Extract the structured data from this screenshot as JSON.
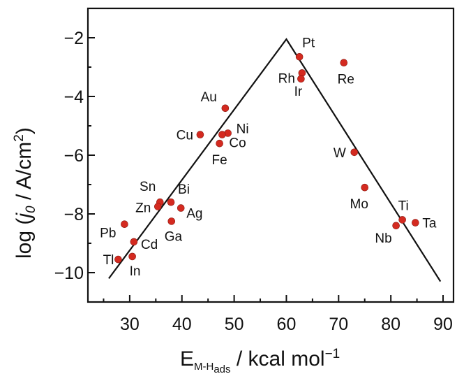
{
  "chart_data": {
    "type": "scatter",
    "title": "",
    "xlabel": {
      "main": "E",
      "sub": "M-H",
      "subsub": "ads",
      "unit": " / kcal mol",
      "sup": "−1"
    },
    "ylabel": {
      "pre": "log (",
      "var": "j",
      "varsub": "0",
      "unit": " / A/cm",
      "sup": "2",
      "post": ")"
    },
    "xlim": [
      22,
      92
    ],
    "ylim": [
      -11,
      -1
    ],
    "xticks": [
      30,
      40,
      50,
      60,
      70,
      80,
      90
    ],
    "xtick_labels": [
      "30",
      "40",
      "50",
      "60",
      "70",
      "80",
      "90"
    ],
    "yticks": [
      -2,
      -4,
      -6,
      -8,
      -10
    ],
    "ytick_labels": [
      "−2",
      "−4",
      "−6",
      "−8",
      "−10"
    ],
    "grid": false,
    "marker_color": "#d42a20",
    "line_color": "#111111",
    "volcano_line": [
      {
        "x": 26,
        "y": -10.2
      },
      {
        "x": 60,
        "y": -2.05
      },
      {
        "x": 89.5,
        "y": -10.3
      }
    ],
    "points": [
      {
        "label": "Pt",
        "x": 62.5,
        "y": -2.65
      },
      {
        "label": "Rh",
        "x": 63.0,
        "y": -3.2
      },
      {
        "label": "Ir",
        "x": 62.8,
        "y": -3.4
      },
      {
        "label": "Re",
        "x": 71.0,
        "y": -2.85
      },
      {
        "label": "Au",
        "x": 48.3,
        "y": -4.4
      },
      {
        "label": "Cu",
        "x": 43.5,
        "y": -5.3
      },
      {
        "label": "Ni",
        "x": 48.8,
        "y": -5.25
      },
      {
        "label": "Co",
        "x": 47.7,
        "y": -5.3
      },
      {
        "label": "Fe",
        "x": 47.2,
        "y": -5.6
      },
      {
        "label": "W",
        "x": 73.0,
        "y": -5.9
      },
      {
        "label": "Mo",
        "x": 75.0,
        "y": -7.1
      },
      {
        "label": "Sn",
        "x": 35.8,
        "y": -7.6
      },
      {
        "label": "Bi",
        "x": 37.9,
        "y": -7.6
      },
      {
        "label": "Zn",
        "x": 35.4,
        "y": -7.75
      },
      {
        "label": "Ag",
        "x": 39.8,
        "y": -7.8
      },
      {
        "label": "Ga",
        "x": 38.0,
        "y": -8.25
      },
      {
        "label": "Pb",
        "x": 29.0,
        "y": -8.35
      },
      {
        "label": "Cd",
        "x": 30.8,
        "y": -8.95
      },
      {
        "label": "Tl",
        "x": 27.8,
        "y": -9.55
      },
      {
        "label": "In",
        "x": 30.5,
        "y": -9.45
      },
      {
        "label": "Ti",
        "x": 82.2,
        "y": -8.2
      },
      {
        "label": "Nb",
        "x": 81.0,
        "y": -8.4
      },
      {
        "label": "Ta",
        "x": 84.7,
        "y": -8.3
      }
    ]
  }
}
